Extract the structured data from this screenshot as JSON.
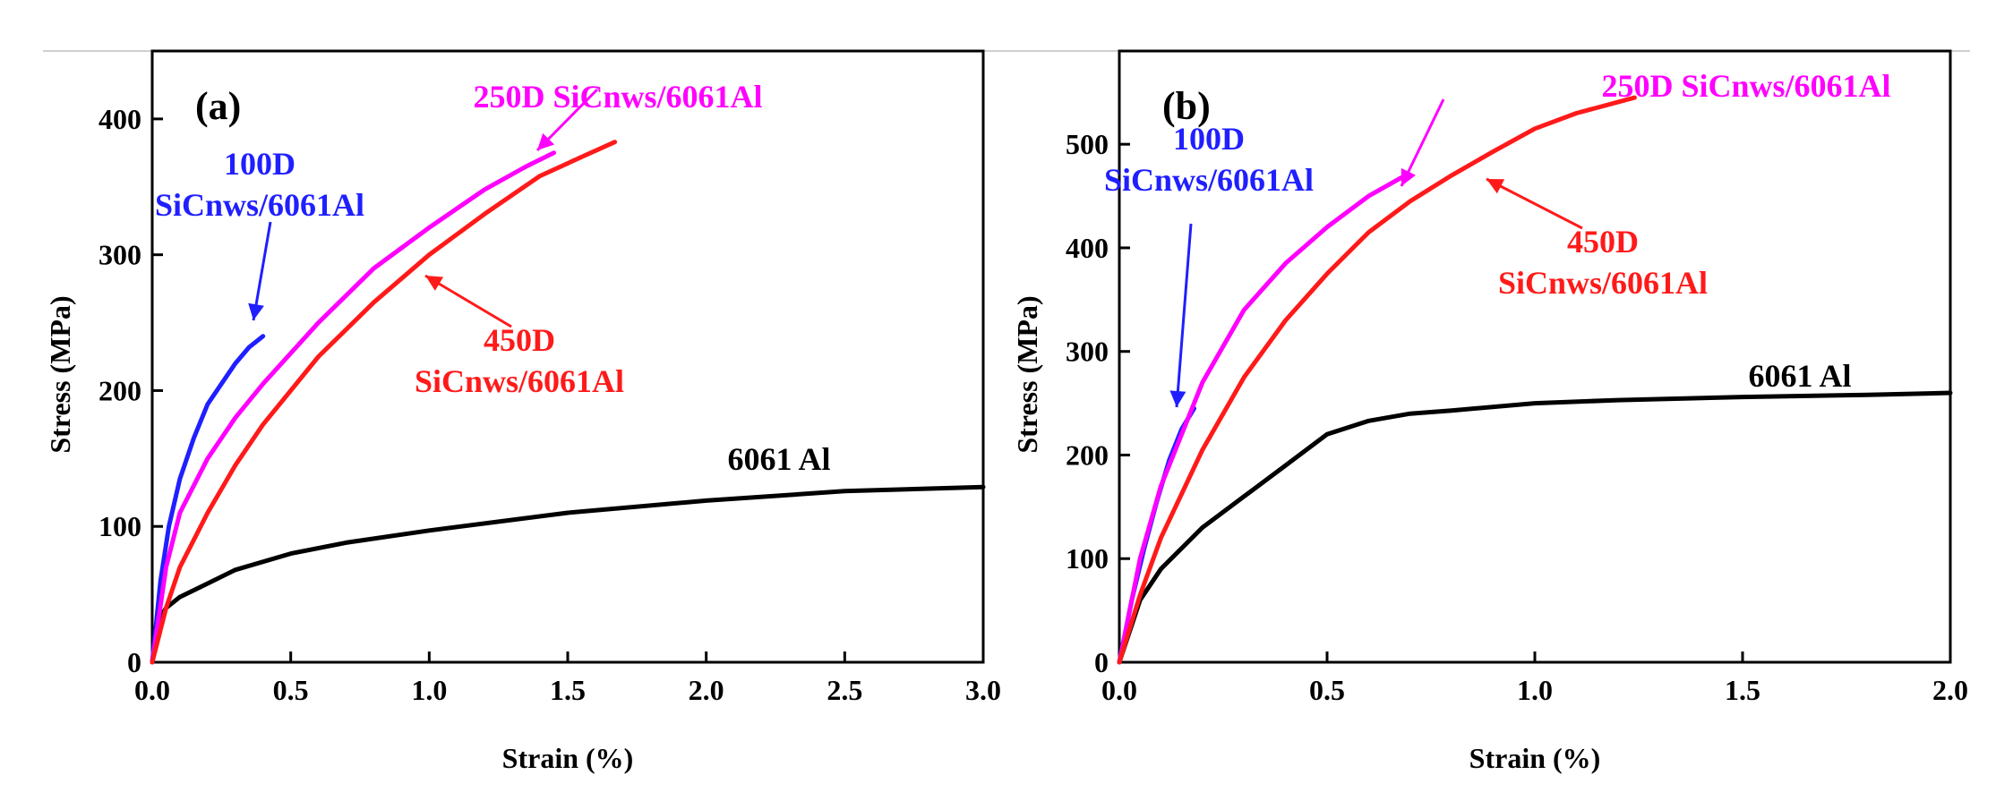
{
  "chart_data": [
    {
      "type": "line",
      "panel": "(a)",
      "xlabel": "Strain (%)",
      "ylabel": "Stress (MPa)",
      "xlim": [
        0,
        3.0
      ],
      "ylim": [
        0,
        450
      ],
      "xticks": [
        "0.0",
        "0.5",
        "1.0",
        "1.5",
        "2.0",
        "2.5",
        "3.0"
      ],
      "yticks": [
        "0",
        "100",
        "200",
        "300",
        "400"
      ],
      "series": [
        {
          "name": "6061 Al",
          "color": "#000000",
          "x": [
            0,
            0.02,
            0.05,
            0.1,
            0.2,
            0.3,
            0.5,
            0.7,
            1.0,
            1.5,
            2.0,
            2.5,
            3.0
          ],
          "y": [
            0,
            30,
            40,
            48,
            58,
            68,
            80,
            88,
            97,
            110,
            119,
            126,
            129
          ]
        },
        {
          "name": "100D SiCnws/6061Al",
          "color": "#1f1fff",
          "x": [
            0,
            0.03,
            0.06,
            0.1,
            0.15,
            0.2,
            0.25,
            0.3,
            0.35,
            0.4
          ],
          "y": [
            0,
            60,
            100,
            135,
            165,
            190,
            205,
            220,
            232,
            240
          ]
        },
        {
          "name": "250D SiCnws/6061Al",
          "color": "#ff00ff",
          "x": [
            0,
            0.05,
            0.1,
            0.2,
            0.3,
            0.4,
            0.6,
            0.8,
            1.0,
            1.2,
            1.35,
            1.45
          ],
          "y": [
            0,
            70,
            110,
            150,
            180,
            205,
            250,
            290,
            320,
            348,
            365,
            375
          ]
        },
        {
          "name": "450D SiCnws/6061Al",
          "color": "#ff1a1a",
          "x": [
            0,
            0.05,
            0.1,
            0.2,
            0.3,
            0.4,
            0.6,
            0.8,
            1.0,
            1.2,
            1.4,
            1.55,
            1.67
          ],
          "y": [
            0,
            40,
            70,
            110,
            145,
            175,
            225,
            265,
            300,
            330,
            358,
            372,
            383
          ]
        }
      ],
      "annotations": [
        {
          "lines": [
            "100D",
            "SiCnws/6061Al"
          ],
          "color": "#1f1fff"
        },
        {
          "lines": [
            "250D SiCnws/6061Al"
          ],
          "color": "#ff00ff"
        },
        {
          "lines": [
            "450D",
            "SiCnws/6061Al"
          ],
          "color": "#ff1a1a"
        },
        {
          "lines": [
            "6061 Al"
          ],
          "color": "#000000"
        }
      ]
    },
    {
      "type": "line",
      "panel": "(b)",
      "xlabel": "Strain (%)",
      "ylabel": "Stress (MPa)",
      "xlim": [
        0,
        2.0
      ],
      "ylim": [
        0,
        590
      ],
      "xticks": [
        "0.0",
        "0.5",
        "1.0",
        "1.5",
        "2.0"
      ],
      "yticks": [
        "0",
        "100",
        "200",
        "300",
        "400",
        "500"
      ],
      "series": [
        {
          "name": "6061 Al",
          "color": "#000000",
          "x": [
            0,
            0.05,
            0.1,
            0.2,
            0.3,
            0.4,
            0.5,
            0.6,
            0.7,
            0.8,
            1.0,
            1.2,
            1.5,
            1.8,
            2.0
          ],
          "y": [
            0,
            60,
            90,
            130,
            160,
            190,
            220,
            233,
            240,
            243,
            250,
            253,
            256,
            258,
            260
          ]
        },
        {
          "name": "100D SiCnws/6061Al",
          "color": "#1f1fff",
          "x": [
            0,
            0.03,
            0.06,
            0.09,
            0.12,
            0.15,
            0.18
          ],
          "y": [
            0,
            60,
            110,
            155,
            195,
            225,
            245
          ]
        },
        {
          "name": "250D SiCnws/6061Al",
          "color": "#ff00ff",
          "x": [
            0,
            0.05,
            0.1,
            0.15,
            0.2,
            0.3,
            0.4,
            0.5,
            0.6,
            0.68
          ],
          "y": [
            0,
            100,
            170,
            220,
            270,
            340,
            385,
            420,
            450,
            468
          ]
        },
        {
          "name": "450D SiCnws/6061Al",
          "color": "#ff1a1a",
          "x": [
            0,
            0.05,
            0.1,
            0.2,
            0.3,
            0.4,
            0.5,
            0.6,
            0.7,
            0.8,
            0.9,
            1.0,
            1.1,
            1.24
          ],
          "y": [
            0,
            65,
            120,
            205,
            275,
            330,
            375,
            415,
            445,
            470,
            493,
            515,
            530,
            545
          ]
        }
      ],
      "annotations": [
        {
          "lines": [
            "100D",
            "SiCnws/6061Al"
          ],
          "color": "#1f1fff"
        },
        {
          "lines": [
            "250D SiCnws/6061Al"
          ],
          "color": "#ff00ff"
        },
        {
          "lines": [
            "450D",
            "SiCnws/6061Al"
          ],
          "color": "#ff1a1a"
        },
        {
          "lines": [
            "6061 Al"
          ],
          "color": "#000000"
        }
      ]
    }
  ]
}
